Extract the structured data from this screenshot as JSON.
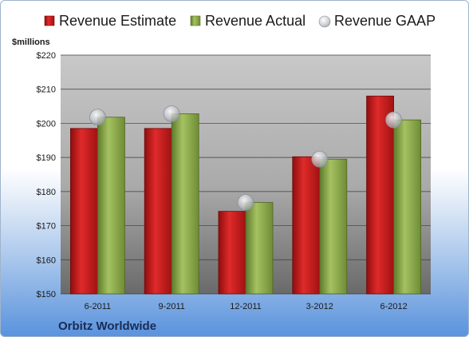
{
  "chart_data": {
    "type": "bar",
    "ylabel": "$millions",
    "categories": [
      "6-2011",
      "9-2011",
      "12-2011",
      "3-2012",
      "6-2012"
    ],
    "series": [
      {
        "name": "Revenue Estimate",
        "values": [
          198.5,
          198.5,
          174.2,
          190.2,
          208.0
        ],
        "color": "#c41e1e",
        "kind": "bar"
      },
      {
        "name": "Revenue Actual",
        "values": [
          201.8,
          202.8,
          176.8,
          189.5,
          201.0
        ],
        "color": "#8aa94a",
        "kind": "bar"
      },
      {
        "name": "Revenue GAAP",
        "values": [
          201.8,
          202.8,
          176.8,
          189.5,
          201.0
        ],
        "color": "#b8bcc4",
        "kind": "marker"
      }
    ],
    "ylim": [
      150,
      220
    ],
    "yticks": [
      "$150",
      "$160",
      "$170",
      "$180",
      "$190",
      "$200",
      "$210",
      "$220"
    ],
    "ytick_values": [
      150,
      160,
      170,
      180,
      190,
      200,
      210,
      220
    ],
    "grid": true,
    "legend_position": "top"
  },
  "footer": {
    "company": "Orbitz Worldwide"
  }
}
